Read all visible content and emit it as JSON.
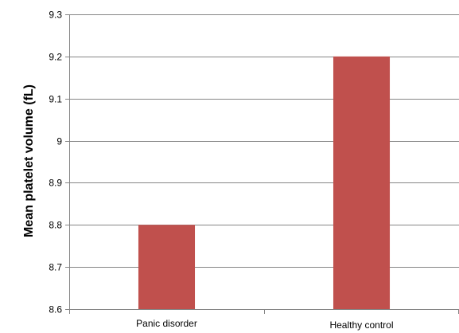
{
  "chart_data": {
    "type": "bar",
    "title": "",
    "xlabel": "",
    "ylabel": "Mean platelet volume (fL)",
    "categories": [
      "Panic disorder",
      "Healthy control"
    ],
    "values": [
      8.8,
      9.2
    ],
    "ylim": [
      8.6,
      9.3
    ],
    "yticks": [
      8.6,
      8.7,
      8.8,
      8.9,
      9,
      9.1,
      9.2,
      9.3
    ],
    "ytick_labels": [
      "8.6",
      "8.7",
      "8.8",
      "8.9",
      "9",
      "9.1",
      "9.2",
      "9.3"
    ],
    "grid": true,
    "legend": "none",
    "colors": {
      "bar": "#c0504d",
      "grid": "#868686",
      "axis": "#868686"
    }
  }
}
